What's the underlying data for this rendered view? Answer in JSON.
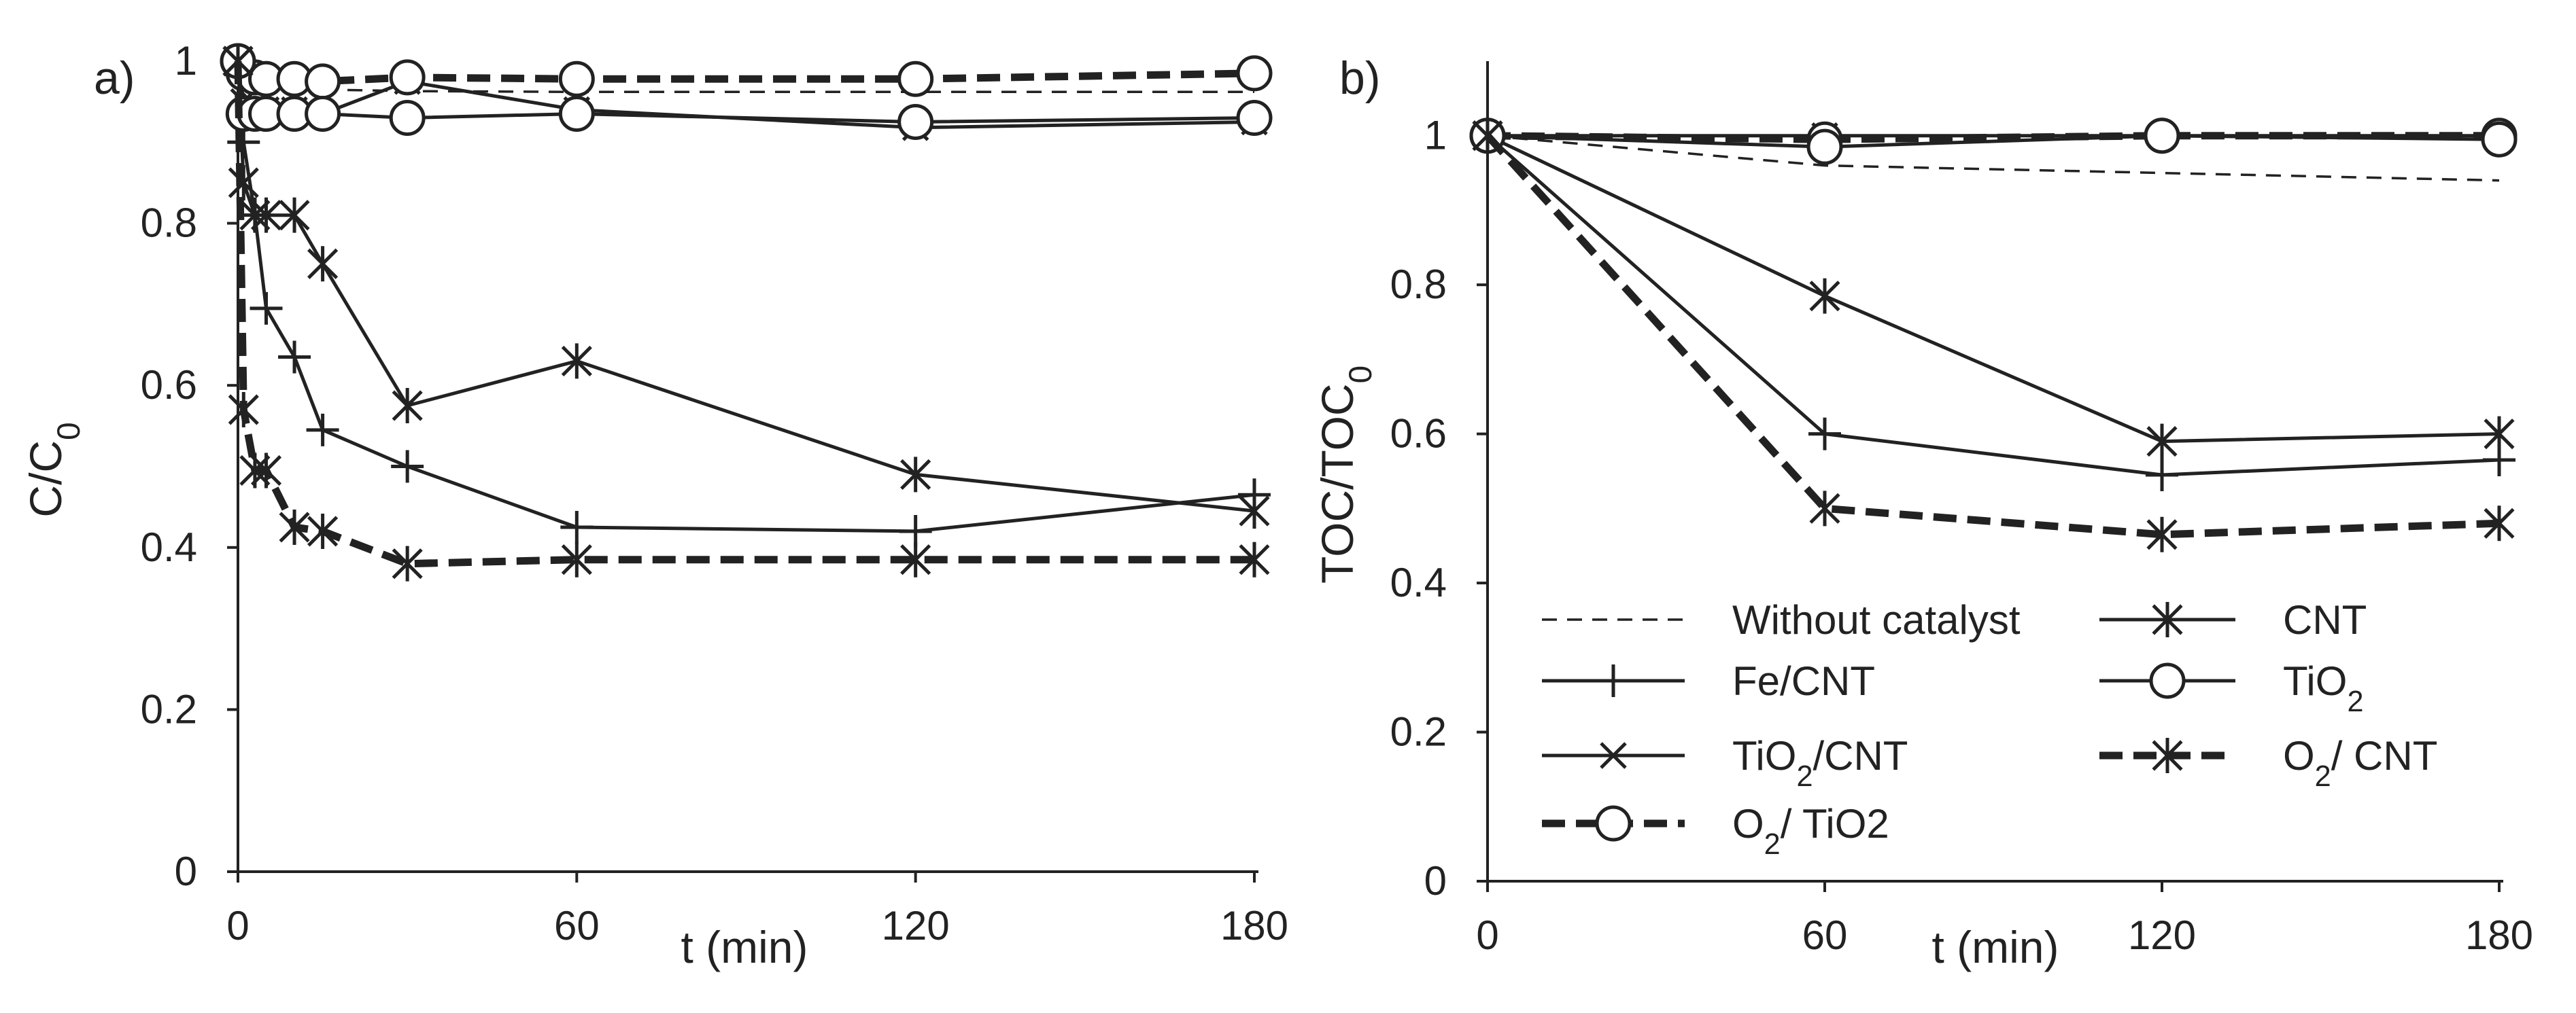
{
  "chart_data": [
    {
      "panel": "a)",
      "type": "line",
      "xlabel": "t (min)",
      "ylabel": "C/C0",
      "ylabel_main": "C/C",
      "ylabel_sub": "0",
      "xlim": [
        0,
        180
      ],
      "ylim": [
        0,
        1
      ],
      "xticks": [
        "0",
        "60",
        "120",
        "180"
      ],
      "yticks": [
        "0",
        "0.2",
        "0.4",
        "0.6",
        "0.8",
        "1"
      ],
      "grid": false,
      "series": [
        {
          "name": "Without catalyst",
          "style": "dashed-thin",
          "marker": "none",
          "x": [
            0,
            1,
            3,
            5,
            10,
            15,
            30,
            60,
            120,
            180
          ],
          "y": [
            1.0,
            0.975,
            0.97,
            0.968,
            0.966,
            0.965,
            0.963,
            0.962,
            0.962,
            0.962
          ]
        },
        {
          "name": "Fe/CNT",
          "style": "solid",
          "marker": "plus",
          "x": [
            0,
            1,
            3,
            5,
            10,
            15,
            30,
            60,
            120,
            180
          ],
          "y": [
            1.0,
            0.9,
            0.81,
            0.695,
            0.635,
            0.545,
            0.5,
            0.425,
            0.42,
            0.465
          ]
        },
        {
          "name": "TiO2/CNT",
          "style": "solid",
          "marker": "x",
          "x": [
            0,
            1,
            3,
            5,
            10,
            15,
            30,
            60,
            120,
            180
          ],
          "y": [
            1.0,
            0.95,
            0.945,
            0.94,
            0.94,
            0.935,
            0.975,
            0.94,
            0.918,
            0.925
          ]
        },
        {
          "name": "O2/ TiO2",
          "style": "dashed-thick",
          "marker": "circle",
          "x": [
            0,
            1,
            3,
            5,
            10,
            15,
            30,
            60,
            120,
            180
          ],
          "y": [
            1.0,
            0.985,
            0.98,
            0.978,
            0.978,
            0.975,
            0.98,
            0.978,
            0.978,
            0.985
          ]
        },
        {
          "name": "CNT",
          "style": "solid",
          "marker": "asterisk",
          "x": [
            0,
            1,
            3,
            5,
            10,
            15,
            30,
            60,
            120,
            180
          ],
          "y": [
            1.0,
            0.85,
            0.81,
            0.81,
            0.81,
            0.75,
            0.575,
            0.63,
            0.49,
            0.445
          ]
        },
        {
          "name": "TiO2",
          "style": "solid",
          "marker": "circle",
          "x": [
            0,
            1,
            3,
            5,
            10,
            15,
            30,
            60,
            120,
            180
          ],
          "y": [
            1.0,
            0.935,
            0.935,
            0.935,
            0.935,
            0.935,
            0.93,
            0.935,
            0.925,
            0.93
          ]
        },
        {
          "name": "O2/ CNT",
          "style": "dashed-thick",
          "marker": "asterisk",
          "x": [
            0,
            1,
            3,
            5,
            10,
            15,
            30,
            60,
            120,
            180
          ],
          "y": [
            1.0,
            0.57,
            0.495,
            0.495,
            0.425,
            0.42,
            0.38,
            0.385,
            0.385,
            0.385
          ]
        }
      ]
    },
    {
      "panel": "b)",
      "type": "line",
      "xlabel": "t (min)",
      "ylabel": "TOC/TOC0",
      "ylabel_main": "TOC/TOC",
      "ylabel_sub": "0",
      "xlim": [
        0,
        180
      ],
      "ylim": [
        0,
        1.1
      ],
      "xticks": [
        "0",
        "60",
        "120",
        "180"
      ],
      "yticks": [
        "0",
        "0.2",
        "0.4",
        "0.6",
        "0.8",
        "1"
      ],
      "grid": false,
      "series": [
        {
          "name": "Without catalyst",
          "style": "dashed-thin",
          "marker": "none",
          "x": [
            0,
            60,
            120,
            180
          ],
          "y": [
            1.0,
            0.96,
            0.95,
            0.94
          ]
        },
        {
          "name": "Fe/CNT",
          "style": "solid",
          "marker": "plus",
          "x": [
            0,
            60,
            120,
            180
          ],
          "y": [
            1.0,
            0.6,
            0.545,
            0.565
          ]
        },
        {
          "name": "TiO2/CNT",
          "style": "solid",
          "marker": "x",
          "x": [
            0,
            60,
            120,
            180
          ],
          "y": [
            1.0,
            1.0,
            1.0,
            1.0
          ]
        },
        {
          "name": "O2/ TiO2",
          "style": "dashed-thick",
          "marker": "circle",
          "x": [
            0,
            60,
            120,
            180
          ],
          "y": [
            1.0,
            0.995,
            1.0,
            1.0
          ]
        },
        {
          "name": "CNT",
          "style": "solid",
          "marker": "asterisk",
          "x": [
            0,
            60,
            120,
            180
          ],
          "y": [
            1.0,
            0.785,
            0.59,
            0.6
          ]
        },
        {
          "name": "TiO2",
          "style": "solid",
          "marker": "circle",
          "x": [
            0,
            60,
            120,
            180
          ],
          "y": [
            1.0,
            0.985,
            1.0,
            0.995
          ]
        },
        {
          "name": "O2/ CNT",
          "style": "dashed-thick",
          "marker": "asterisk",
          "x": [
            0,
            60,
            120,
            180
          ],
          "y": [
            1.0,
            0.5,
            0.465,
            0.48
          ]
        }
      ]
    }
  ],
  "legend": {
    "location": "panel b, lower-left",
    "entries": [
      {
        "series": "Without catalyst",
        "text": "Without catalyst",
        "main": "Without catalyst",
        "sub": "",
        "rest": ""
      },
      {
        "series": "CNT",
        "text": "CNT",
        "main": "CNT",
        "sub": "",
        "rest": ""
      },
      {
        "series": "Fe/CNT",
        "text": "Fe/CNT",
        "main": "Fe/CNT",
        "sub": "",
        "rest": ""
      },
      {
        "series": "TiO2",
        "text": "TiO2",
        "main": "TiO",
        "sub": "2",
        "rest": ""
      },
      {
        "series": "TiO2/CNT",
        "text": "TiO2/CNT",
        "main": "TiO",
        "sub": "2",
        "rest": "/CNT"
      },
      {
        "series": "O2/ CNT",
        "text": "O2/ CNT",
        "main": "O",
        "sub": "2",
        "rest": "/ CNT"
      },
      {
        "series": "O2/ TiO2",
        "text": "O2/ TiO2",
        "main": "O",
        "sub": "2",
        "rest": "/ TiO2"
      }
    ]
  },
  "colors": {
    "ink": "#222222",
    "background": "#ffffff"
  }
}
